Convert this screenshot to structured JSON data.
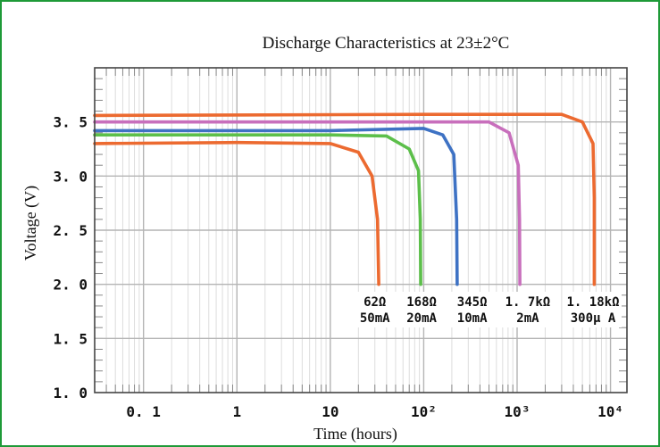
{
  "chart_data": {
    "type": "line",
    "title": "Discharge Characteristics at 23±2°C",
    "xlabel": "Time (hours)",
    "ylabel": "Voltage (V)",
    "x_scale": "log",
    "xlim": [
      0.03,
      15000
    ],
    "ylim": [
      1.0,
      4.0
    ],
    "grid": true,
    "x_ticks": [
      {
        "value": 0.1,
        "label": "0. 1"
      },
      {
        "value": 1,
        "label": "1"
      },
      {
        "value": 10,
        "label": "10"
      },
      {
        "value": 100,
        "label": "10²"
      },
      {
        "value": 1000,
        "label": "10³"
      },
      {
        "value": 10000,
        "label": "10⁴"
      }
    ],
    "y_ticks": [
      {
        "value": 1.0,
        "label": "1. 0"
      },
      {
        "value": 1.5,
        "label": "1. 5"
      },
      {
        "value": 2.0,
        "label": "2. 0"
      },
      {
        "value": 2.5,
        "label": "2. 5"
      },
      {
        "value": 3.0,
        "label": "3. 0"
      },
      {
        "value": 3.5,
        "label": "3. 5"
      }
    ],
    "series": [
      {
        "name": "62Ω 50mA",
        "color": "#ec6a30",
        "points": [
          [
            0.03,
            3.3
          ],
          [
            1,
            3.31
          ],
          [
            10,
            3.3
          ],
          [
            20,
            3.22
          ],
          [
            28,
            3.0
          ],
          [
            32,
            2.6
          ],
          [
            33,
            2.0
          ]
        ]
      },
      {
        "name": "168Ω 20mA",
        "color": "#5cbf4a",
        "points": [
          [
            0.03,
            3.38
          ],
          [
            10,
            3.38
          ],
          [
            40,
            3.37
          ],
          [
            70,
            3.25
          ],
          [
            88,
            3.05
          ],
          [
            92,
            2.6
          ],
          [
            93,
            2.0
          ]
        ]
      },
      {
        "name": "345Ω 10mA",
        "color": "#3e72c4",
        "points": [
          [
            0.03,
            3.42
          ],
          [
            10,
            3.42
          ],
          [
            100,
            3.44
          ],
          [
            160,
            3.38
          ],
          [
            210,
            3.2
          ],
          [
            225,
            2.6
          ],
          [
            228,
            2.0
          ]
        ]
      },
      {
        "name": "1.7kΩ 2mA",
        "color": "#c86fbc",
        "points": [
          [
            0.03,
            3.5
          ],
          [
            100,
            3.5
          ],
          [
            500,
            3.5
          ],
          [
            820,
            3.4
          ],
          [
            1030,
            3.1
          ],
          [
            1060,
            2.6
          ],
          [
            1070,
            2.0
          ]
        ]
      },
      {
        "name": "1.18kΩ 300µA",
        "color": "#ec6a30",
        "points": [
          [
            0.03,
            3.56
          ],
          [
            100,
            3.57
          ],
          [
            1000,
            3.57
          ],
          [
            3000,
            3.57
          ],
          [
            5000,
            3.5
          ],
          [
            6500,
            3.3
          ],
          [
            6700,
            2.8
          ],
          [
            6700,
            2.0
          ]
        ]
      }
    ],
    "annotations": [
      {
        "line1": "62Ω",
        "line2": "50mA",
        "x": 30
      },
      {
        "line1": "168Ω",
        "line2": "20mA",
        "x": 95
      },
      {
        "line1": "345Ω",
        "line2": "10mA",
        "x": 330
      },
      {
        "line1": "1. 7kΩ",
        "line2": "2mA",
        "x": 1300
      },
      {
        "line1": "1. 18kΩ",
        "line2": "300µ A",
        "x": 6500
      }
    ]
  },
  "colors": {
    "frame_border": "#1e9a38",
    "plot_border": "#444444",
    "grid_major": "#b4b4b4",
    "grid_minor": "#dddddd"
  }
}
